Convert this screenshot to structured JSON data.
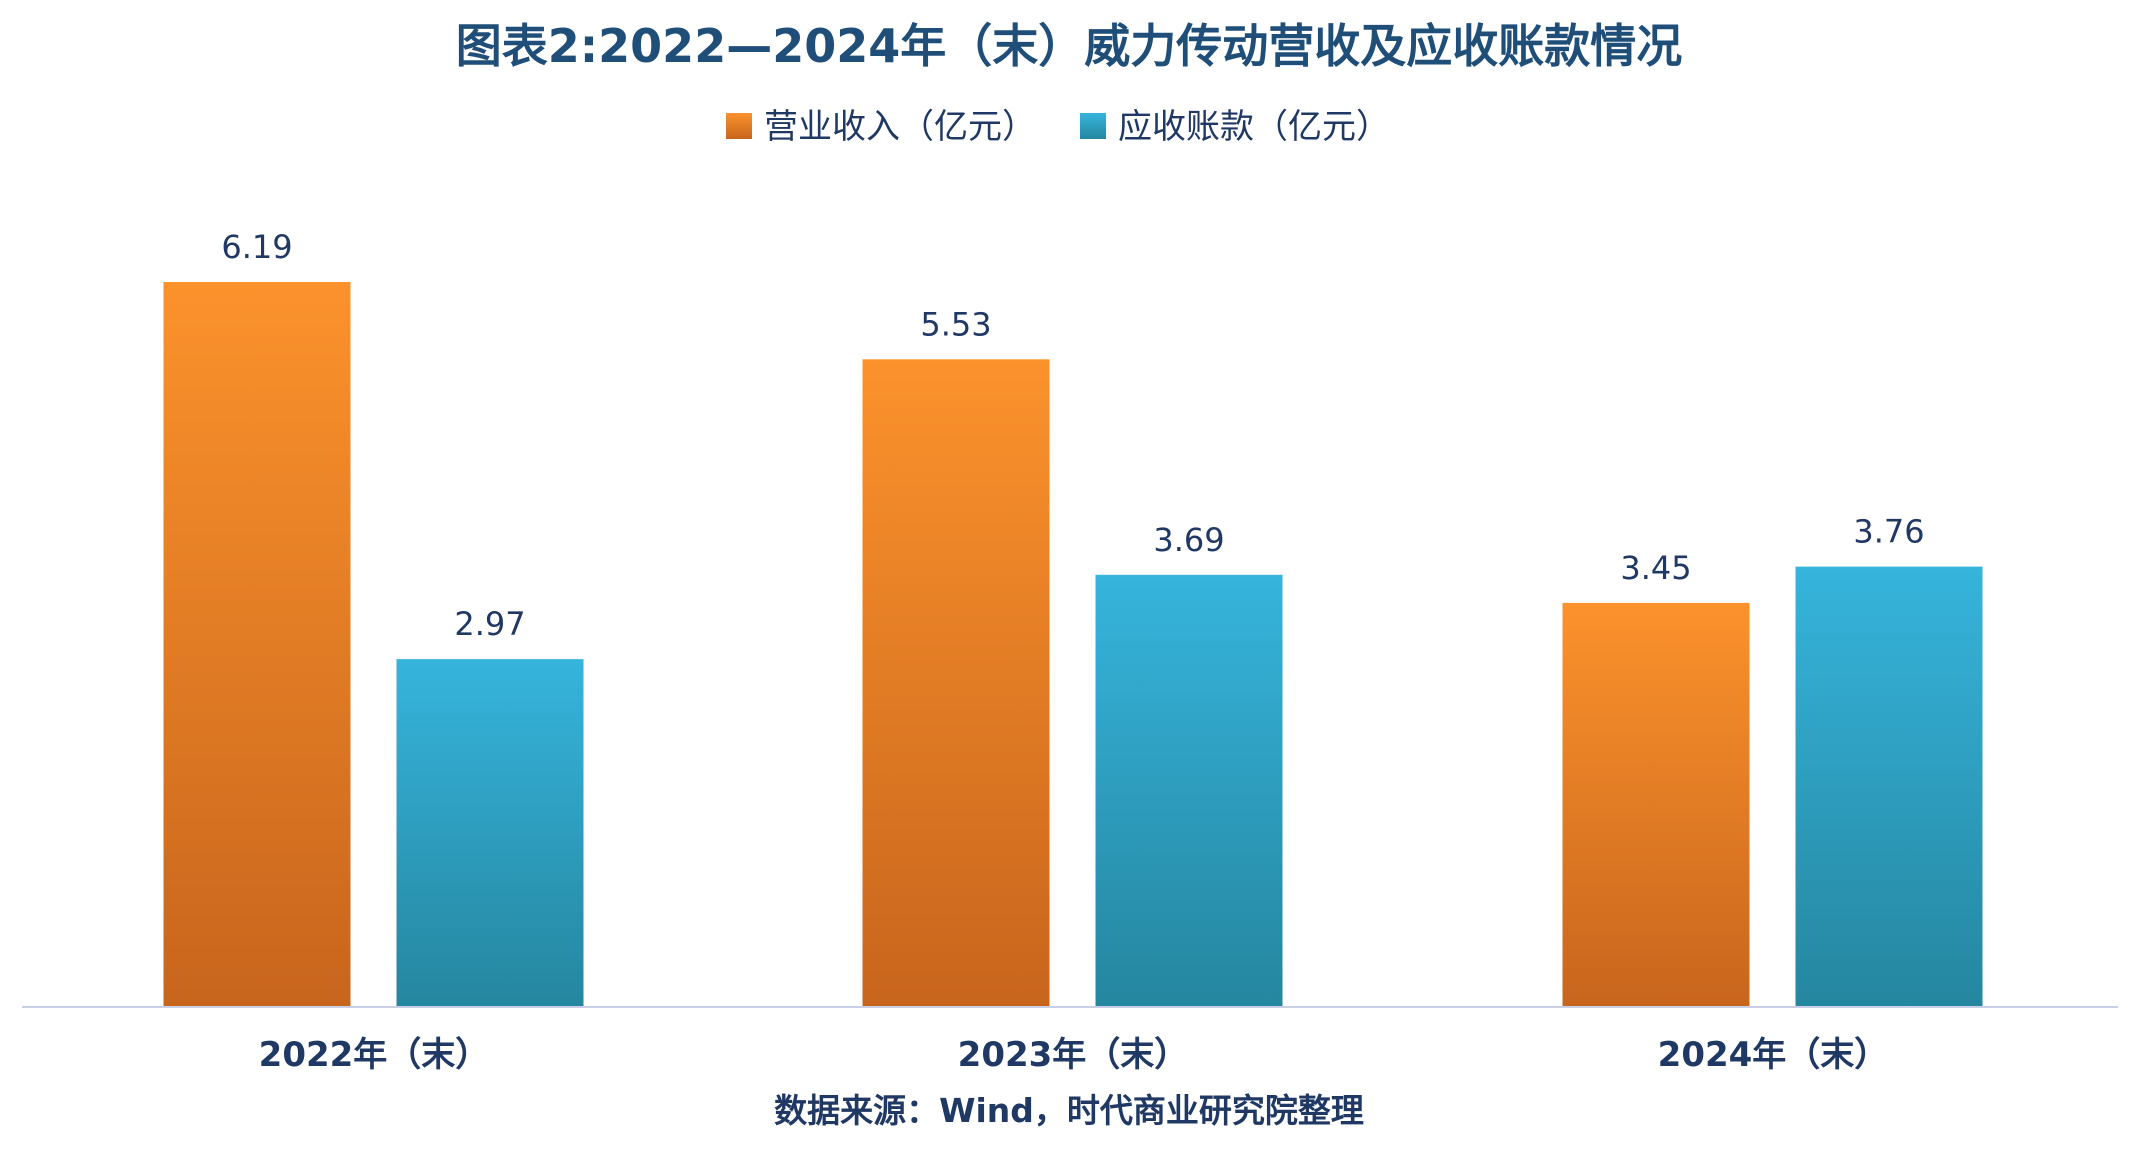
{
  "chart_data": {
    "type": "bar",
    "title": "图表2:2022—2024年（末）威力传动营收及应收账款情况",
    "categories": [
      "2022年（末）",
      "2023年（末）",
      "2024年（末）"
    ],
    "series": [
      {
        "name": "营业收入（亿元）",
        "values": [
          6.19,
          5.53,
          3.45
        ],
        "color_top": "#fb922c",
        "color_bottom": "#c8651d"
      },
      {
        "name": "应收账款（亿元）",
        "values": [
          2.97,
          3.69,
          3.76
        ],
        "color_top": "#36b4dc",
        "color_bottom": "#25869f"
      }
    ],
    "value_labels": [
      [
        "6.19",
        "5.53",
        "3.45"
      ],
      [
        "2.97",
        "3.69",
        "3.76"
      ]
    ],
    "ylim": [
      0,
      6.19
    ],
    "grid": false,
    "legend_position": "top-center",
    "axis_color": "#c9cfe6",
    "source": "数据来源：Wind，时代商业研究院整理"
  }
}
